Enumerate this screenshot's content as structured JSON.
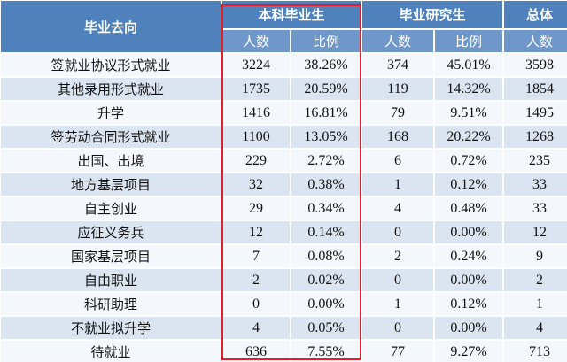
{
  "table": {
    "header": {
      "group": [
        "毕业去向",
        "本科毕业生",
        "毕业研究生",
        "总体"
      ],
      "sub": [
        "人数",
        "比例",
        "人数",
        "比例",
        "人数"
      ]
    },
    "rows": [
      [
        "签就业协议形式就业",
        "3224",
        "38.26%",
        "374",
        "45.01%",
        "3598"
      ],
      [
        "其他录用形式就业",
        "1735",
        "20.59%",
        "119",
        "14.32%",
        "1854"
      ],
      [
        "升学",
        "1416",
        "16.81%",
        "79",
        "9.51%",
        "1495"
      ],
      [
        "签劳动合同形式就业",
        "1100",
        "13.05%",
        "168",
        "20.22%",
        "1268"
      ],
      [
        "出国、出境",
        "229",
        "2.72%",
        "6",
        "0.72%",
        "235"
      ],
      [
        "地方基层项目",
        "32",
        "0.38%",
        "1",
        "0.12%",
        "33"
      ],
      [
        "自主创业",
        "29",
        "0.34%",
        "4",
        "0.48%",
        "33"
      ],
      [
        "应征义务兵",
        "12",
        "0.14%",
        "0",
        "0.00%",
        "12"
      ],
      [
        "国家基层项目",
        "7",
        "0.08%",
        "2",
        "0.24%",
        "9"
      ],
      [
        "自由职业",
        "2",
        "0.02%",
        "0",
        "0.00%",
        "2"
      ],
      [
        "科研助理",
        "0",
        "0.00%",
        "1",
        "0.12%",
        "1"
      ],
      [
        "不就业拟升学",
        "4",
        "0.05%",
        "0",
        "0.00%",
        "4"
      ],
      [
        "待就业",
        "636",
        "7.55%",
        "77",
        "9.27%",
        "713"
      ]
    ]
  }
}
